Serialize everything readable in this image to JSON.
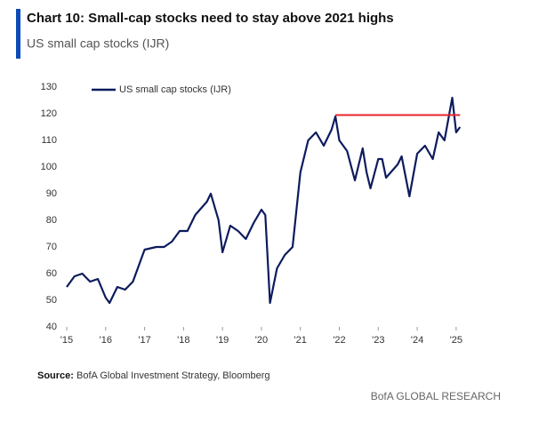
{
  "chart_data": {
    "type": "line",
    "title": "Chart 10: Small-cap stocks need to stay above 2021 highs",
    "subtitle": "US small cap stocks (IJR)",
    "source_label": "Source:",
    "source": "BofA Global Investment Strategy, Bloomberg",
    "brand": "BofA GLOBAL RESEARCH",
    "x": [
      2015.0,
      2015.2,
      2015.4,
      2015.6,
      2015.8,
      2016.0,
      2016.1,
      2016.3,
      2016.5,
      2016.7,
      2016.85,
      2017.0,
      2017.3,
      2017.5,
      2017.7,
      2017.9,
      2018.1,
      2018.3,
      2018.6,
      2018.7,
      2018.9,
      2019.0,
      2019.2,
      2019.4,
      2019.6,
      2019.8,
      2020.0,
      2020.1,
      2020.22,
      2020.4,
      2020.6,
      2020.8,
      2020.9,
      2021.0,
      2021.2,
      2021.4,
      2021.6,
      2021.8,
      2021.9,
      2022.0,
      2022.2,
      2022.4,
      2022.6,
      2022.7,
      2022.8,
      2023.0,
      2023.1,
      2023.2,
      2023.5,
      2023.6,
      2023.8,
      2024.0,
      2024.2,
      2024.4,
      2024.55,
      2024.7,
      2024.9,
      2025.0,
      2025.1
    ],
    "series": [
      {
        "name": "US small cap stocks (IJR)",
        "color": "#0d1b5e",
        "values": [
          55,
          59,
          60,
          57,
          58,
          51,
          49,
          55,
          54,
          57,
          63,
          69,
          70,
          70,
          72,
          76,
          76,
          82,
          87,
          90,
          80,
          68,
          78,
          76,
          73,
          79,
          84,
          82,
          49,
          62,
          67,
          70,
          84,
          98,
          110,
          113,
          108,
          114,
          119,
          110,
          106,
          95,
          107,
          98,
          92,
          103,
          103,
          96,
          101,
          104,
          89,
          105,
          108,
          103,
          113,
          110,
          126,
          113,
          115
        ]
      }
    ],
    "reference_line": {
      "y": 119.5,
      "x": [
        2021.9,
        2025.1
      ],
      "color": "#e8262c"
    },
    "xlim": [
      2015,
      2025.3
    ],
    "xticks": [
      {
        "value": 2015,
        "label": "'15"
      },
      {
        "value": 2016,
        "label": "'16"
      },
      {
        "value": 2017,
        "label": "'17"
      },
      {
        "value": 2018,
        "label": "'18"
      },
      {
        "value": 2019,
        "label": "'19"
      },
      {
        "value": 2020,
        "label": "'20"
      },
      {
        "value": 2021,
        "label": "'21"
      },
      {
        "value": 2022,
        "label": "'22"
      },
      {
        "value": 2023,
        "label": "'23"
      },
      {
        "value": 2024,
        "label": "'24"
      },
      {
        "value": 2025,
        "label": "'25"
      }
    ],
    "ylim": [
      40,
      130
    ],
    "yticks": [
      40,
      50,
      60,
      70,
      80,
      90,
      100,
      110,
      120,
      130
    ],
    "grid": false,
    "legend": "top-left"
  }
}
